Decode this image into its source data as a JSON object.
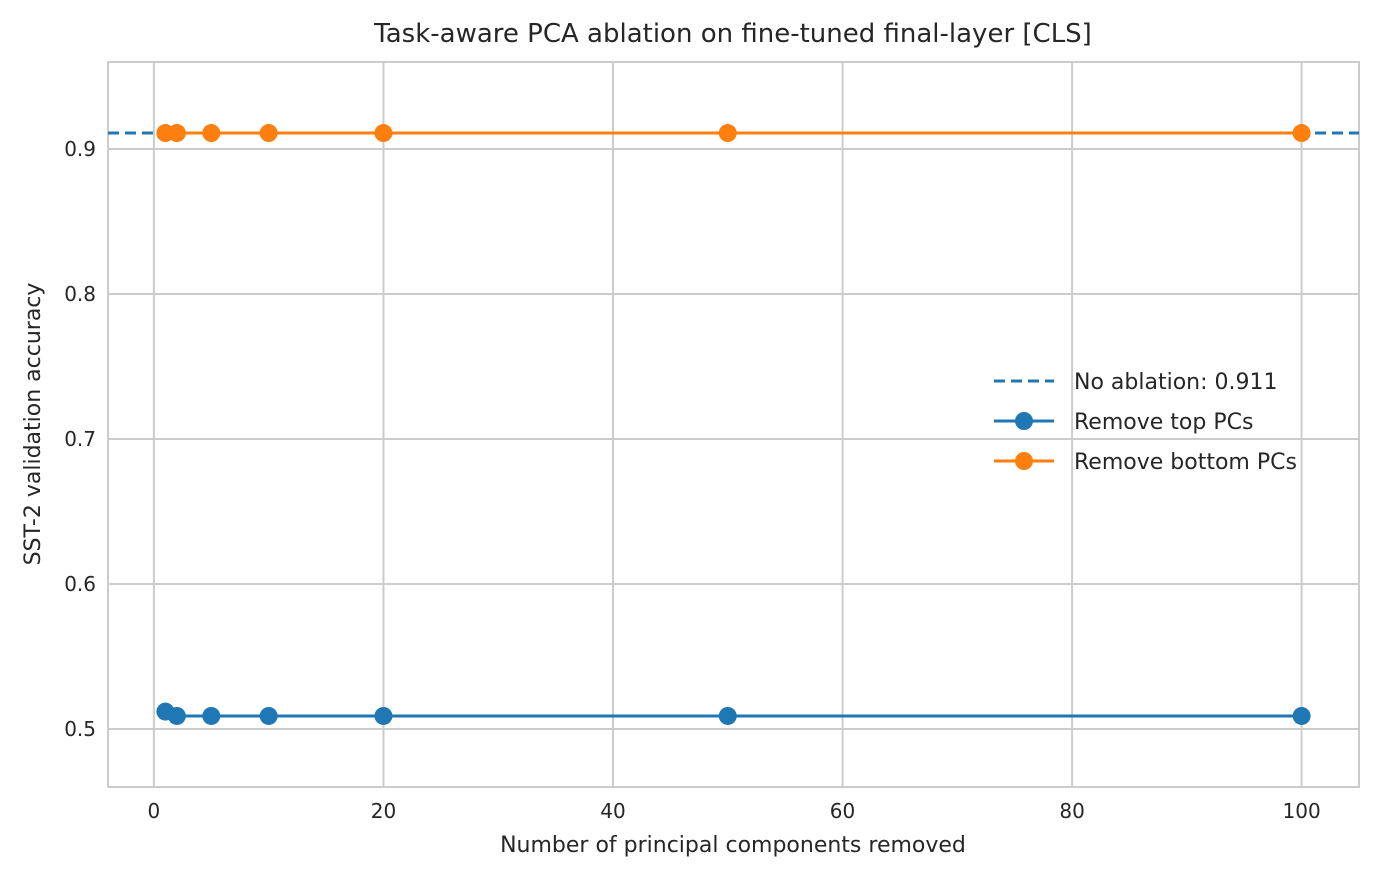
{
  "chart_data": {
    "type": "line",
    "title": "Task-aware PCA ablation on fine-tuned final-layer [CLS]",
    "xlabel": "Number of principal components removed",
    "ylabel": "SST-2 validation accuracy",
    "xlim": [
      -4,
      105
    ],
    "ylim": [
      0.46,
      0.96
    ],
    "xticks": [
      0,
      20,
      40,
      60,
      80,
      100
    ],
    "xtick_labels": [
      "0",
      "20",
      "40",
      "60",
      "80",
      "100"
    ],
    "yticks": [
      0.5,
      0.6,
      0.7,
      0.8,
      0.9
    ],
    "ytick_labels": [
      "0.5",
      "0.6",
      "0.7",
      "0.8",
      "0.9"
    ],
    "grid": true,
    "legend_position": "center-right",
    "x": [
      1,
      2,
      5,
      10,
      20,
      50,
      100
    ],
    "baseline": {
      "name": "No ablation: 0.911",
      "value": 0.911,
      "color": "#1f77b4",
      "style": "dashed"
    },
    "series": [
      {
        "name": "Remove top PCs",
        "color": "#1f77b4",
        "values": [
          0.512,
          0.509,
          0.509,
          0.509,
          0.509,
          0.509,
          0.509
        ]
      },
      {
        "name": "Remove bottom PCs",
        "color": "#ff7f0e",
        "values": [
          0.911,
          0.911,
          0.911,
          0.911,
          0.911,
          0.911,
          0.911
        ]
      }
    ]
  }
}
